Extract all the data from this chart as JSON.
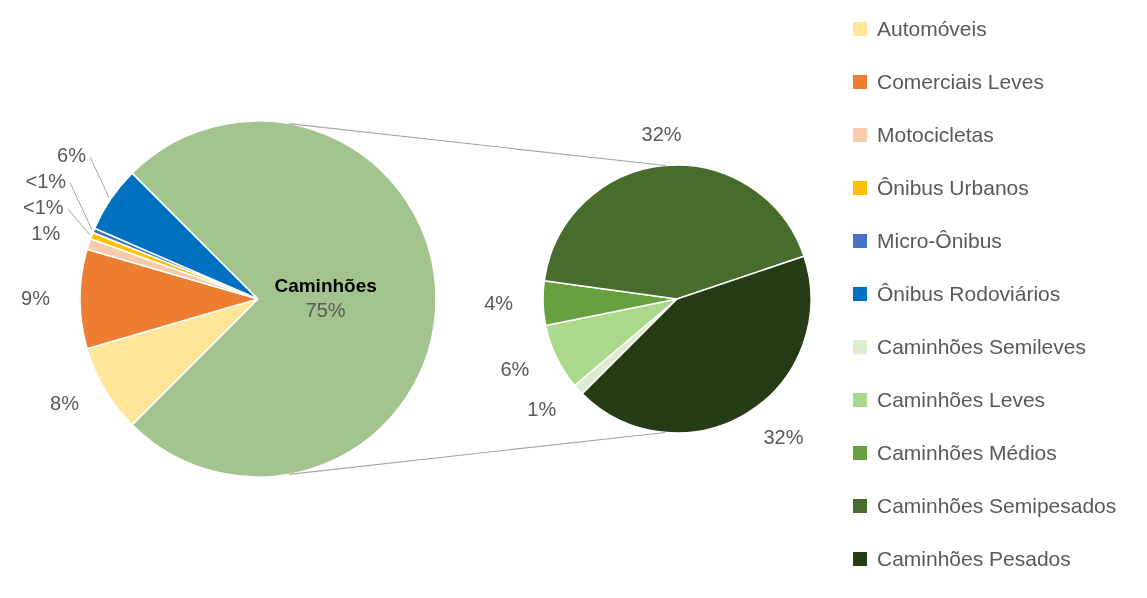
{
  "chart_data": [
    {
      "type": "pie",
      "categories": [
        "Automóveis",
        "Comerciais Leves",
        "Motocicletas",
        "Ônibus Urbanos",
        "Micro-Ônibus",
        "Ônibus Rodoviários",
        "Caminhões"
      ],
      "values": [
        8,
        9,
        1,
        0.6,
        0.4,
        6,
        75
      ],
      "colors": [
        "#ffe699",
        "#ed7d31",
        "#f8cbad",
        "#ffc000",
        "#4472c4",
        "#0070c0",
        "#a3c48f"
      ],
      "value_labels": [
        "8%",
        "9%",
        "1%",
        "<1%",
        "<1%",
        "6%",
        "75%"
      ],
      "legend": "right"
    },
    {
      "type": "pie",
      "categories": [
        "Caminhões Semileves",
        "Caminhões Leves",
        "Caminhões Médios",
        "Caminhões Semipesados",
        "Caminhões Pesados"
      ],
      "values": [
        1,
        6,
        4,
        32,
        32
      ],
      "colors": [
        "#dcedd0",
        "#abd98b",
        "#66a03f",
        "#476c2b",
        "#263c16"
      ],
      "value_labels": [
        "1%",
        "6%",
        "4%",
        "32%",
        "32%"
      ],
      "legend": "right"
    }
  ]
}
